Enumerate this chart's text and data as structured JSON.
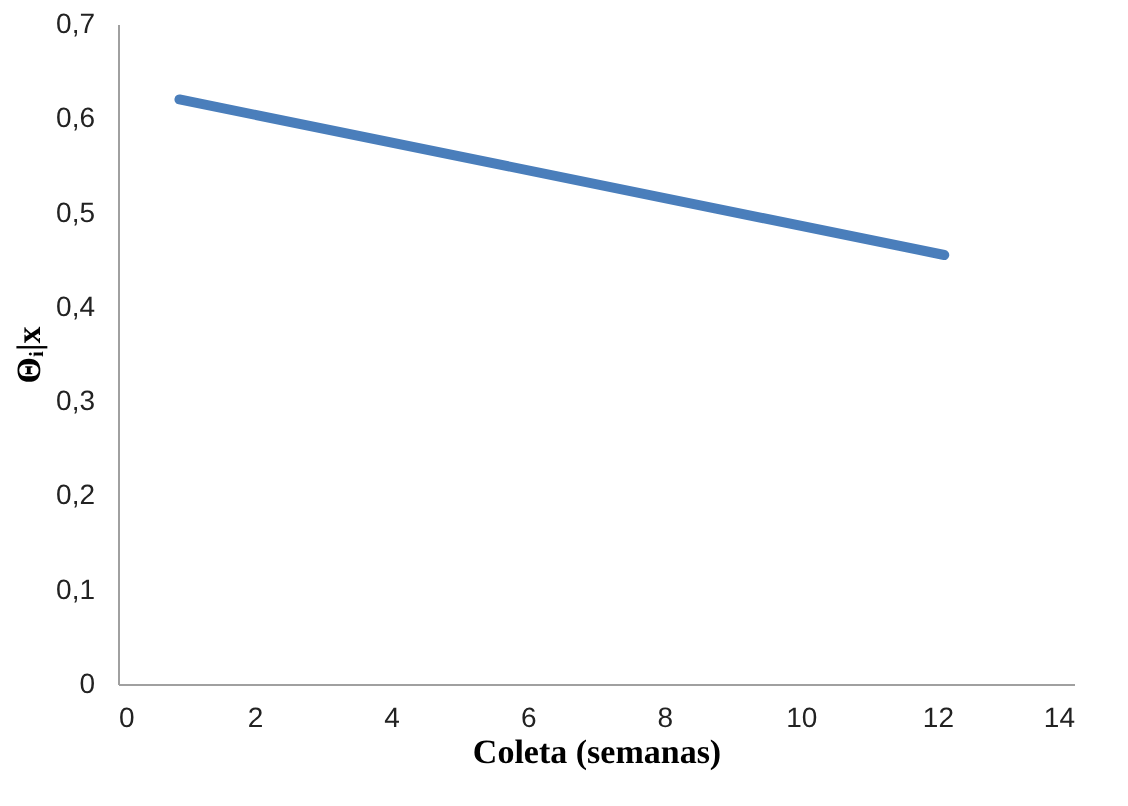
{
  "chart_data": {
    "type": "line",
    "xlabel": "Coleta (semanas)",
    "ylabel": "Θᵢ|x",
    "series": [
      {
        "color": "#4a7ebb",
        "x": [
          0.9,
          12.1
        ],
        "values": [
          0.62,
          0.455
        ]
      }
    ],
    "xlim": [
      0,
      14
    ],
    "xticks": [
      0,
      2,
      4,
      6,
      8,
      10,
      12,
      14
    ],
    "ylim": [
      0,
      0.7
    ],
    "yticks": [
      {
        "value": 0,
        "label": "0"
      },
      {
        "value": 0.1,
        "label": "0,1"
      },
      {
        "value": 0.2,
        "label": "0,2"
      },
      {
        "value": 0.3,
        "label": "0,3"
      },
      {
        "value": 0.4,
        "label": "0,4"
      },
      {
        "value": 0.5,
        "label": "0,5"
      },
      {
        "value": 0.6,
        "label": "0,6"
      },
      {
        "value": 0.7,
        "label": "0,7"
      }
    ],
    "grid": false,
    "marker": "none",
    "line_style": "solid"
  }
}
